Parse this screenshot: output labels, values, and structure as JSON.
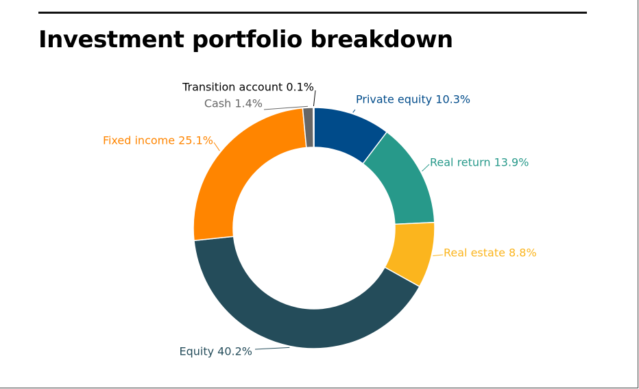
{
  "page": {
    "title": "Investment portfolio breakdown"
  },
  "chart_data": {
    "type": "pie",
    "donut": true,
    "title": "Investment portfolio breakdown",
    "unit": "%",
    "legend": "none",
    "slices": [
      {
        "label": "Private equity",
        "value": 10.3,
        "text": "Private equity 10.3%",
        "color": "#004b8a"
      },
      {
        "label": "Real return",
        "value": 13.9,
        "text": "Real return 13.9%",
        "color": "#27998a"
      },
      {
        "label": "Real estate",
        "value": 8.8,
        "text": "Real estate 8.8%",
        "color": "#fbb51e"
      },
      {
        "label": "Equity",
        "value": 40.2,
        "text": "Equity 40.2%",
        "color": "#244c5a"
      },
      {
        "label": "Fixed income",
        "value": 25.1,
        "text": "Fixed income 25.1%",
        "color": "#ff8500"
      },
      {
        "label": "Cash",
        "value": 1.4,
        "text": "Cash 1.4%",
        "color": "#666666"
      },
      {
        "label": "Transition account",
        "value": 0.1,
        "text": "Transition account 0.1%",
        "color": "#000000"
      }
    ]
  }
}
